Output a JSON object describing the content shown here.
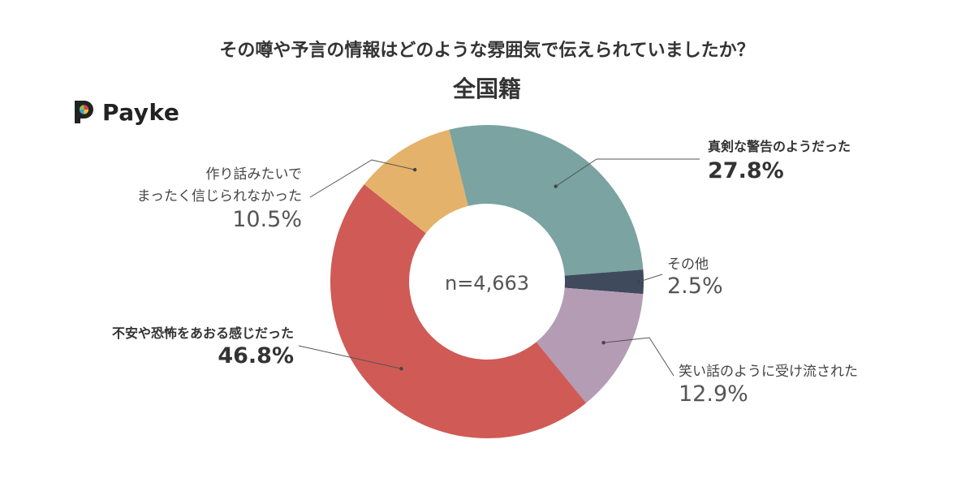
{
  "chart_data": {
    "type": "pie",
    "title": "その噂や予言の情報はどのような雰囲気で伝えられていましたか？",
    "subtitle": "全国籍",
    "center_label": "n=4,663",
    "slices": [
      {
        "label": "真剣な警告のようだった",
        "value": 27.8,
        "display": "27.8%",
        "color": "#7aa3a2",
        "emphasis": true
      },
      {
        "label": "その他",
        "value": 2.5,
        "display": "2.5%",
        "color": "#3f4a5c",
        "emphasis": false
      },
      {
        "label": "笑い話のように受け流された",
        "value": 12.9,
        "display": "12.9%",
        "color": "#b49cb5",
        "emphasis": false
      },
      {
        "label": "不安や恐怖をあおる感じだった",
        "value": 46.8,
        "display": "46.8%",
        "color": "#d05a56",
        "emphasis": true
      },
      {
        "label": "作り話みたいでまったく信じられなかった",
        "value": 10.5,
        "display": "10.5%",
        "color": "#e4b26a",
        "emphasis": false
      }
    ]
  },
  "brand": {
    "name": "Payke",
    "logo_icon": "payke-logo-icon"
  }
}
